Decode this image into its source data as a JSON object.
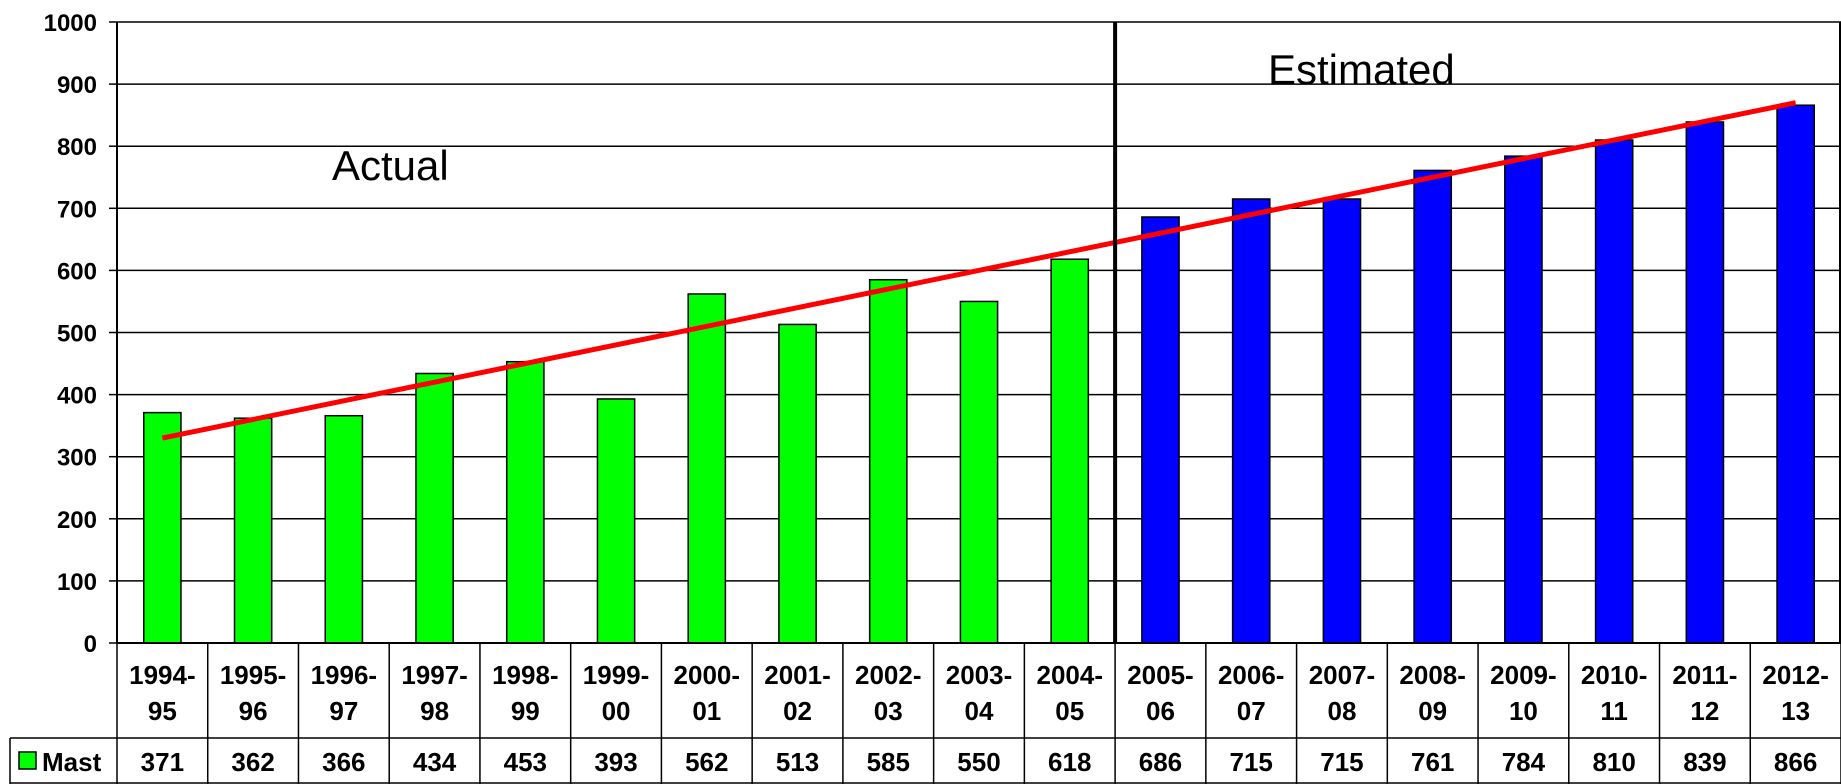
{
  "chart_data": {
    "type": "bar",
    "categories": [
      [
        "1994-",
        "95"
      ],
      [
        "1995-",
        "96"
      ],
      [
        "1996-",
        "97"
      ],
      [
        "1997-",
        "98"
      ],
      [
        "1998-",
        "99"
      ],
      [
        "1999-",
        "00"
      ],
      [
        "2000-",
        "01"
      ],
      [
        "2001-",
        "02"
      ],
      [
        "2002-",
        "03"
      ],
      [
        "2003-",
        "04"
      ],
      [
        "2004-",
        "05"
      ],
      [
        "2005-",
        "06"
      ],
      [
        "2006-",
        "07"
      ],
      [
        "2007-",
        "08"
      ],
      [
        "2008-",
        "09"
      ],
      [
        "2009-",
        "10"
      ],
      [
        "2010-",
        "11"
      ],
      [
        "2011-",
        "12"
      ],
      [
        "2012-",
        "13"
      ]
    ],
    "series": [
      {
        "name": "Mast",
        "values": [
          371,
          362,
          366,
          434,
          453,
          393,
          562,
          513,
          585,
          550,
          618,
          686,
          715,
          715,
          761,
          784,
          810,
          839,
          866
        ]
      }
    ],
    "bar_colors": {
      "actual": "#00ff00",
      "estimated": "#0000ff"
    },
    "actual_count": 11,
    "trendline": {
      "color": "#ff0000",
      "start": 330,
      "end": 870
    },
    "annotations": {
      "actual": "Actual",
      "estimated": "Estimated"
    },
    "ylim": [
      0,
      1000
    ],
    "yticks": [
      0,
      100,
      200,
      300,
      400,
      500,
      600,
      700,
      800,
      900,
      1000
    ],
    "grid": true,
    "legend_placement": "data-table-left",
    "data_table": true
  }
}
